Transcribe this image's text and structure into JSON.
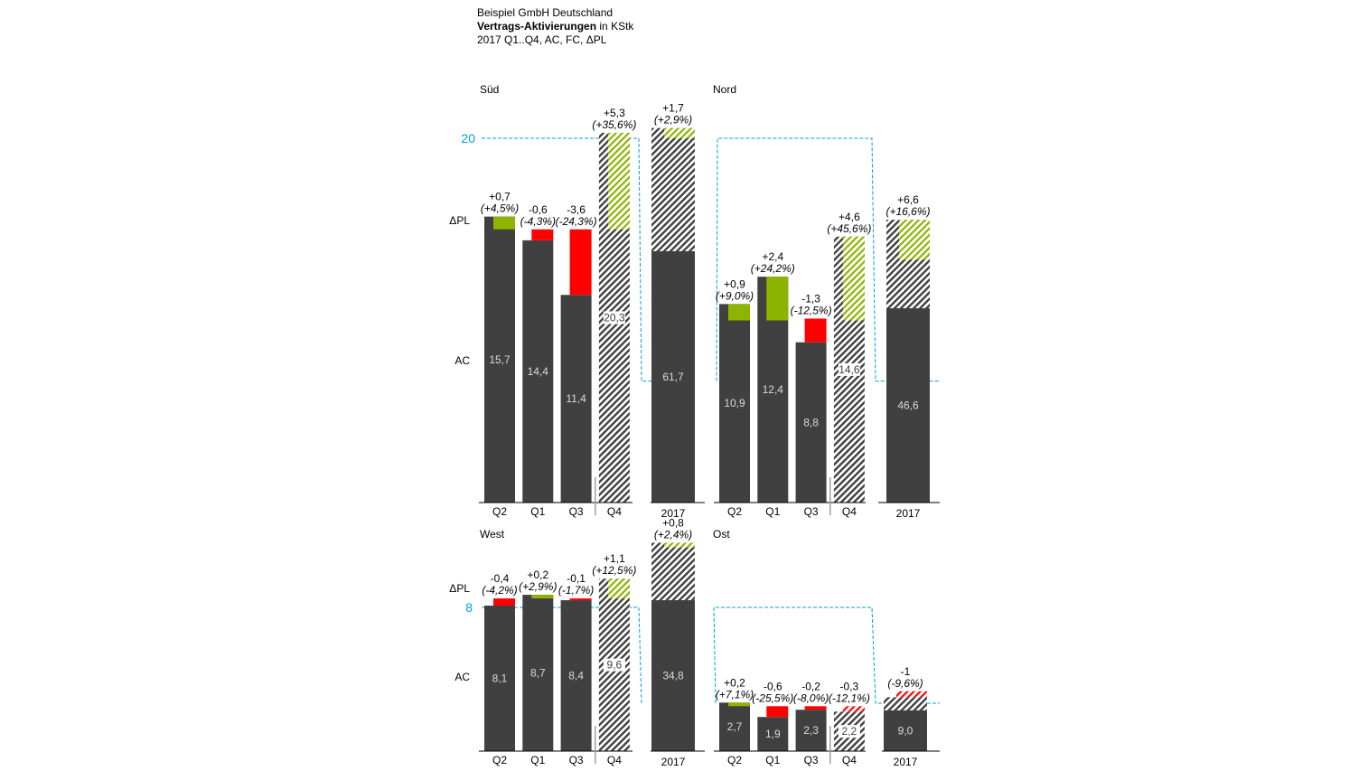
{
  "header": {
    "company": "Beispiel GmbH Deutschland",
    "measure": "Vertrags-Aktivierungen",
    "unit": "in KStk",
    "period": "2017 Q1..Q4, AC, FC, ΔPL"
  },
  "colors": {
    "ac": "#404040",
    "positive": "#8cb400",
    "negative": "#ff0000",
    "scale_line": "#00a0e0",
    "forecast_hatch": "#404040"
  },
  "chart_data": [
    {
      "type": "bar",
      "region": "Süd",
      "row_labels": {
        "delta": "ΔPL",
        "ac": "AC"
      },
      "scale_marker": {
        "value": 20,
        "label": "20"
      },
      "categories": [
        "Q2",
        "Q1",
        "Q3",
        "Q4"
      ],
      "forecast_categories": [
        "Q4"
      ],
      "values": [
        15.7,
        14.4,
        11.4,
        20.3
      ],
      "value_labels": [
        "15,7",
        "14,4",
        "11,4",
        "20,3"
      ],
      "delta_pl": [
        0.7,
        -0.6,
        -3.6,
        5.3
      ],
      "delta_labels": [
        "+0,7",
        "-0,6",
        "-3,6",
        "+5,3"
      ],
      "delta_pct_labels": [
        "(+4,5%)",
        "(-4,3%)",
        "(-24,3%)",
        "(+35,6%)"
      ],
      "total": {
        "label": "2017",
        "value": 61.7,
        "value_label": "61,7",
        "delta": 1.7,
        "delta_label": "+1,7",
        "delta_pct_label": "(+2,9%)"
      }
    },
    {
      "type": "bar",
      "region": "Nord",
      "categories": [
        "Q2",
        "Q1",
        "Q3",
        "Q4"
      ],
      "forecast_categories": [
        "Q4"
      ],
      "values": [
        10.9,
        12.4,
        8.8,
        14.6
      ],
      "value_labels": [
        "10,9",
        "12,4",
        "8,8",
        "14,6"
      ],
      "delta_pl": [
        0.9,
        2.4,
        -1.3,
        4.6
      ],
      "delta_labels": [
        "+0,9",
        "+2,4",
        "-1,3",
        "+4,6"
      ],
      "delta_pct_labels": [
        "(+9,0%)",
        "(+24,2%)",
        "(-12,5%)",
        "(+45,6%)"
      ],
      "total": {
        "label": "2017",
        "value": 46.6,
        "value_label": "46,6",
        "delta": 6.6,
        "delta_label": "+6,6",
        "delta_pct_label": "(+16,6%)"
      }
    },
    {
      "type": "bar",
      "region": "West",
      "row_labels": {
        "delta": "ΔPL",
        "ac": "AC"
      },
      "scale_marker": {
        "value": 8,
        "label": "8"
      },
      "categories": [
        "Q2",
        "Q1",
        "Q3",
        "Q4"
      ],
      "forecast_categories": [
        "Q4"
      ],
      "values": [
        8.1,
        8.7,
        8.4,
        9.6
      ],
      "value_labels": [
        "8,1",
        "8,7",
        "8,4",
        "9,6"
      ],
      "delta_pl": [
        -0.4,
        0.2,
        -0.1,
        1.1
      ],
      "delta_labels": [
        "-0,4",
        "+0,2",
        "-0,1",
        "+1,1"
      ],
      "delta_pct_labels": [
        "(-4,2%)",
        "(+2,9%)",
        "(-1,7%)",
        "(+12,5%)"
      ],
      "total": {
        "label": "2017",
        "value": 34.8,
        "value_label": "34,8",
        "delta": 0.8,
        "delta_label": "+0,8",
        "delta_pct_label": "(+2,4%)"
      }
    },
    {
      "type": "bar",
      "region": "Ost",
      "categories": [
        "Q2",
        "Q1",
        "Q3",
        "Q4"
      ],
      "forecast_categories": [
        "Q4"
      ],
      "values": [
        2.7,
        1.9,
        2.3,
        2.2
      ],
      "value_labels": [
        "2,7",
        "1,9",
        "2,3",
        "2,2"
      ],
      "delta_pl": [
        0.2,
        -0.6,
        -0.2,
        -0.3
      ],
      "delta_labels": [
        "+0,2",
        "-0,6",
        "-0,2",
        "-0,3"
      ],
      "delta_pct_labels": [
        "(+7,1%)",
        "(-25,5%)",
        "(-8,0%)",
        "(-12,1%)"
      ],
      "total": {
        "label": "2017",
        "value": 9.0,
        "value_label": "9,0",
        "delta": -1,
        "delta_label": "-1",
        "delta_pct_label": "(-9,6%)"
      }
    }
  ]
}
